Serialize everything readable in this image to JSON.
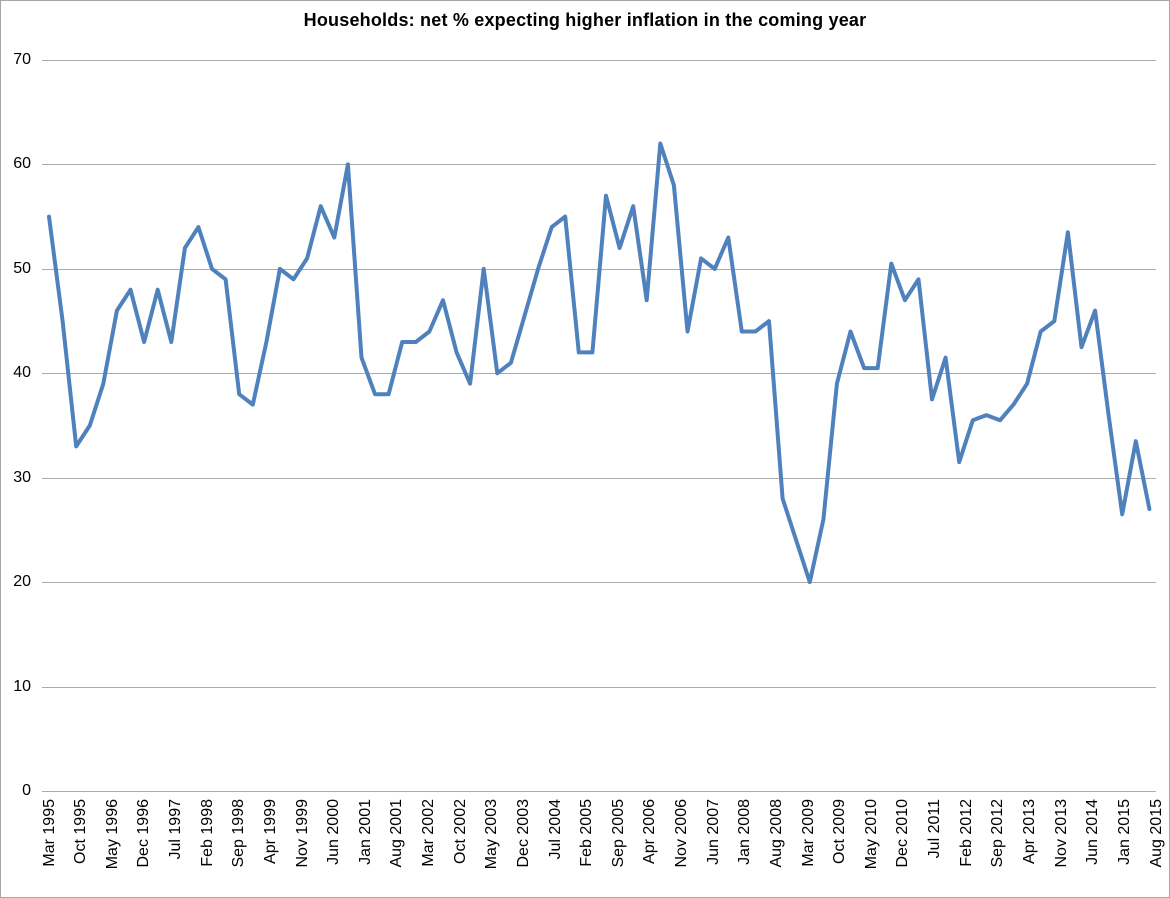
{
  "chart_data": {
    "type": "line",
    "title": "Households: net % expecting higher inflation in the coming year",
    "values": [
      55,
      45,
      33,
      35,
      39,
      46,
      48,
      43,
      48,
      43,
      52,
      54,
      50,
      49,
      38,
      37,
      43,
      50,
      49,
      51,
      56,
      53,
      60,
      41.5,
      38,
      38,
      43,
      43,
      44,
      47,
      42,
      39,
      50,
      40,
      41,
      45.5,
      50,
      54,
      55,
      42,
      42,
      57,
      52,
      56,
      47,
      62,
      58,
      44,
      51,
      50,
      53,
      44,
      44,
      45,
      28,
      24,
      20,
      26,
      39,
      44,
      40.5,
      40.5,
      50.5,
      47,
      49,
      37.5,
      41.5,
      31.5,
      35.5,
      36,
      35.5,
      37,
      39,
      44,
      45,
      53.5,
      42.5,
      46,
      36,
      26.5,
      33.5,
      27
    ],
    "x_tick_labels": [
      "Mar 1995",
      "Oct 1995",
      "May 1996",
      "Dec 1996",
      "Jul 1997",
      "Feb 1998",
      "Sep 1998",
      "Apr 1999",
      "Nov 1999",
      "Jun 2000",
      "Jan 2001",
      "Aug 2001",
      "Mar 2002",
      "Oct 2002",
      "May 2003",
      "Dec 2003",
      "Jul 2004",
      "Feb 2005",
      "Sep 2005",
      "Apr 2006",
      "Nov 2006",
      "Jun 2007",
      "Jan 2008",
      "Aug 2008",
      "Mar 2009",
      "Oct 2009",
      "May 2010",
      "Dec 2010",
      "Jul 2011",
      "Feb 2012",
      "Sep 2012",
      "Apr 2013",
      "Nov 2013",
      "Jun 2014",
      "Jan 2015",
      "Aug 2015"
    ],
    "y_ticks": [
      0,
      10,
      20,
      30,
      40,
      50,
      60,
      70
    ],
    "ylim": [
      0,
      70
    ],
    "grid": "horizontal",
    "legend": "none",
    "line_color": "#4F81BD",
    "gridline_color": "#ABABAB",
    "border_color": "#A6A6A6",
    "background_color": "#FFFFFF"
  }
}
